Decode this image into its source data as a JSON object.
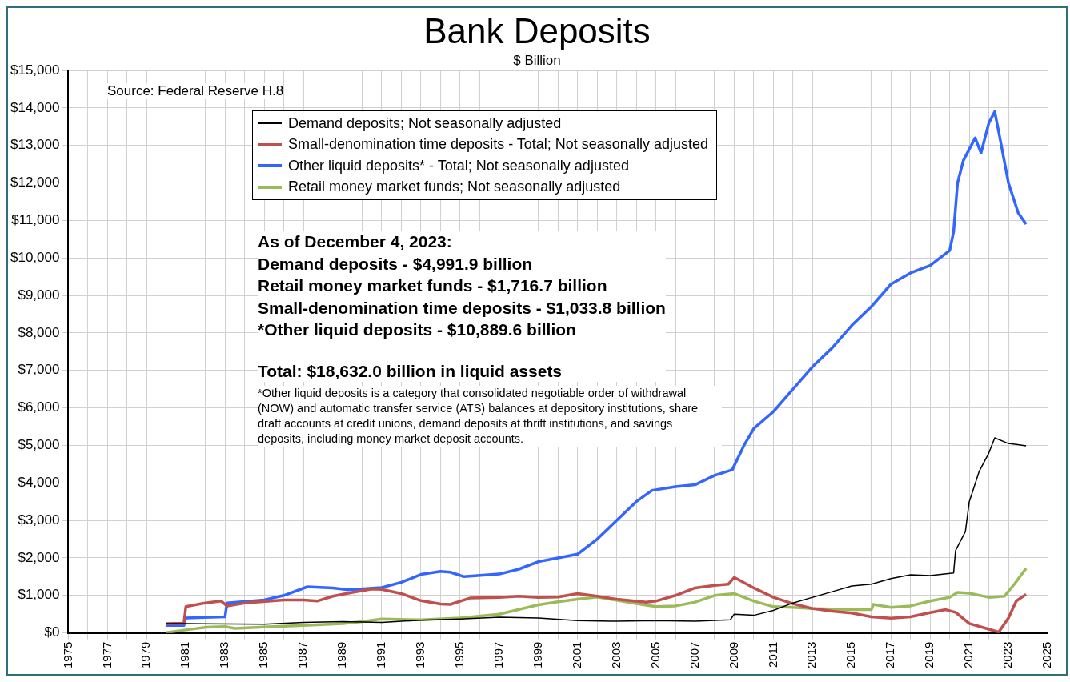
{
  "chart_data": {
    "type": "line",
    "title": "Bank Deposits",
    "subtitle": "$ Billion",
    "annotations": [
      "Source: Federal Reserve H.8",
      "As of December 4, 2023:",
      "Demand deposits - $4,991.9 billion",
      "Retail money market funds - $1,716.7 billion",
      "Small-denomination time deposits - $1,033.8 billion",
      "*Other liquid deposits - $10,889.6 billion",
      "Total: $18,632.0 billion in liquid assets",
      "*Other liquid deposits is a category that consolidated negotiable order of withdrawal (NOW) and automatic transfer service (ATS) balances at depository institutions, share draft accounts at credit unions, demand deposits at thrift institutions, and savings deposits, including money market deposit accounts."
    ],
    "series": [
      {
        "name": "Demand deposits; Not seasonally adjusted",
        "color": "#000000",
        "x": [
          1980,
          1981,
          1985,
          1987,
          1989,
          1991,
          1993,
          1995,
          1997,
          1999,
          2001,
          2003,
          2005,
          2007,
          2008.8,
          2009,
          2010,
          2011,
          2012,
          2013,
          2014,
          2015,
          2016,
          2017,
          2018,
          2019,
          2020.2,
          2020.3,
          2020.8,
          2021,
          2021.5,
          2022,
          2022.3,
          2023,
          2023.9
        ],
        "values": [
          250,
          250,
          230,
          280,
          300,
          280,
          340,
          370,
          420,
          400,
          330,
          310,
          330,
          310,
          350,
          500,
          470,
          600,
          800,
          950,
          1100,
          1250,
          1300,
          1450,
          1550,
          1530,
          1600,
          2200,
          2700,
          3500,
          4300,
          4800,
          5200,
          5050,
          4990
        ]
      },
      {
        "name": "Small-denomination time deposits - Total; Not seasonally adjusted",
        "color": "#c0504d",
        "x": [
          1980,
          1980.9,
          1981,
          1982,
          1982.8,
          1983.1,
          1984,
          1986,
          1987,
          1987.7,
          1988.5,
          1989.5,
          1990.5,
          1991,
          1992,
          1993,
          1994,
          1994.5,
          1995.5,
          1997,
          1998,
          1999,
          2000,
          2001,
          2002,
          2003,
          2004.5,
          2005,
          2006,
          2007,
          2008,
          2008.7,
          2009,
          2010,
          2011,
          2012,
          2013,
          2014,
          2015,
          2016,
          2017,
          2018,
          2019,
          2019.8,
          2020.3,
          2021,
          2022,
          2022.5,
          2023,
          2023.4,
          2023.9
        ],
        "values": [
          250,
          260,
          700,
          800,
          850,
          720,
          800,
          880,
          880,
          850,
          980,
          1080,
          1170,
          1160,
          1050,
          860,
          770,
          760,
          930,
          950,
          980,
          950,
          960,
          1050,
          980,
          900,
          820,
          850,
          1000,
          1200,
          1270,
          1300,
          1480,
          1200,
          950,
          780,
          650,
          580,
          530,
          430,
          390,
          430,
          540,
          620,
          550,
          250,
          100,
          20,
          400,
          850,
          1030
        ]
      },
      {
        "name": "Other liquid deposits* - Total; Not seasonally adjusted",
        "color": "#3366ff",
        "x": [
          1980,
          1980.9,
          1981,
          1983,
          1983.1,
          1985,
          1986,
          1987.2,
          1988.5,
          1989.3,
          1991,
          1992,
          1993,
          1994,
          1994.5,
          1995.2,
          1997,
          1998,
          1999,
          2000,
          2001,
          2002,
          2003,
          2004,
          2004.8,
          2006,
          2007,
          2008,
          2008.9,
          2009.5,
          2010,
          2011,
          2012,
          2013,
          2014,
          2015,
          2016,
          2017,
          2018,
          2019,
          2020,
          2020.2,
          2020.4,
          2020.7,
          2021,
          2021.3,
          2021.6,
          2022,
          2022.3,
          2022.6,
          2023,
          2023.5,
          2023.9
        ],
        "values": [
          200,
          200,
          400,
          430,
          800,
          880,
          1000,
          1230,
          1200,
          1150,
          1210,
          1350,
          1560,
          1640,
          1620,
          1500,
          1570,
          1700,
          1900,
          2000,
          2100,
          2500,
          3000,
          3500,
          3800,
          3900,
          3950,
          4200,
          4350,
          5000,
          5450,
          5900,
          6500,
          7100,
          7600,
          8200,
          8700,
          9300,
          9600,
          9800,
          10200,
          10700,
          12000,
          12600,
          12900,
          13200,
          12800,
          13600,
          13900,
          13100,
          12000,
          11200,
          10900
        ]
      },
      {
        "name": "Retail money market funds; Not seasonally adjusted",
        "color": "#9bbb59",
        "x": [
          1980,
          1981,
          1982,
          1983,
          1983.5,
          1985,
          1987,
          1989,
          1990,
          1991,
          1993,
          1995,
          1997,
          1999,
          2000,
          2001,
          2002,
          2003,
          2004,
          2005,
          2006,
          2007,
          2008,
          2009,
          2010,
          2011,
          2012,
          2013,
          2014,
          2015,
          2016,
          2016.1,
          2017,
          2018,
          2019,
          2020,
          2020.4,
          2021,
          2022,
          2022.8,
          2023.3,
          2023.9
        ],
        "values": [
          10,
          80,
          150,
          170,
          120,
          160,
          200,
          250,
          300,
          370,
          350,
          400,
          500,
          750,
          830,
          900,
          960,
          870,
          780,
          700,
          720,
          820,
          1000,
          1050,
          850,
          700,
          680,
          650,
          640,
          620,
          620,
          760,
          680,
          720,
          850,
          950,
          1080,
          1060,
          950,
          980,
          1300,
          1720
        ]
      }
    ],
    "xlim": [
      1975,
      2025
    ],
    "xticks": [
      1975,
      {
        "value": 1976,
        "label": null
      },
      1977,
      {
        "value": 1978,
        "label": null
      },
      1979,
      {
        "value": 1980,
        "label": null
      },
      1981,
      {
        "value": 1982,
        "label": null
      },
      1983,
      {
        "value": 1984,
        "label": null
      },
      1985,
      {
        "value": 1986,
        "label": null
      },
      1987,
      {
        "value": 1988,
        "label": null
      },
      1989,
      {
        "value": 1990,
        "label": null
      },
      1991,
      {
        "value": 1992,
        "label": null
      },
      1993,
      {
        "value": 1994,
        "label": null
      },
      1995,
      {
        "value": 1996,
        "label": null
      },
      1997,
      {
        "value": 1998,
        "label": null
      },
      1999,
      {
        "value": 2000,
        "label": null
      },
      2001,
      {
        "value": 2002,
        "label": null
      },
      2003,
      {
        "value": 2004,
        "label": null
      },
      2005,
      {
        "value": 2006,
        "label": null
      },
      2007,
      {
        "value": 2008,
        "label": null
      },
      2009,
      {
        "value": 2010,
        "label": null
      },
      2011,
      {
        "value": 2012,
        "label": null
      },
      2013,
      {
        "value": 2014,
        "label": null
      },
      2015,
      {
        "value": 2016,
        "label": null
      },
      2017,
      {
        "value": 2018,
        "label": null
      },
      2019,
      {
        "value": 2020,
        "label": null
      },
      2021,
      {
        "value": 2022,
        "label": null
      },
      2023,
      {
        "value": 2024,
        "label": null
      },
      2025
    ],
    "ylim": [
      0,
      15000
    ],
    "yticks": [
      {
        "value": 0,
        "label": "$0"
      },
      {
        "value": 1000,
        "label": "$1,000"
      },
      {
        "value": 2000,
        "label": "$2,000"
      },
      {
        "value": 3000,
        "label": "$3,000"
      },
      {
        "value": 4000,
        "label": "$4,000"
      },
      {
        "value": 5000,
        "label": "$5,000"
      },
      {
        "value": 6000,
        "label": "$6,000"
      },
      {
        "value": 7000,
        "label": "$7,000"
      },
      {
        "value": 8000,
        "label": "$8,000"
      },
      {
        "value": 9000,
        "label": "$9,000"
      },
      {
        "value": 10000,
        "label": "$10,000"
      },
      {
        "value": 11000,
        "label": "$11,000"
      },
      {
        "value": 12000,
        "label": "$12,000"
      },
      {
        "value": 13000,
        "label": "$13,000"
      },
      {
        "value": 14000,
        "label": "$14,000"
      },
      {
        "value": 15000,
        "label": "$15,000"
      }
    ],
    "grid": true,
    "legend": "top",
    "marker": "none",
    "line_style": "solid"
  }
}
